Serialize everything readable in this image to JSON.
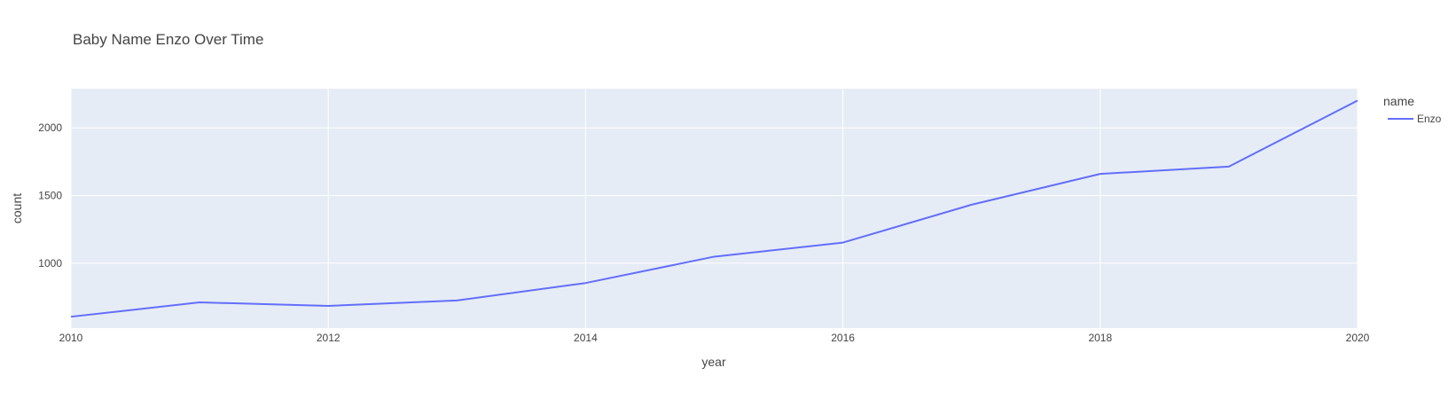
{
  "chart_data": {
    "type": "line",
    "title": "Baby Name Enzo Over Time",
    "xlabel": "year",
    "ylabel": "count",
    "xlim": [
      2010,
      2020
    ],
    "ylim": [
      520,
      2290
    ],
    "x_ticks": [
      2010,
      2012,
      2014,
      2016,
      2018,
      2020
    ],
    "y_ticks": [
      1000,
      1500,
      2000
    ],
    "grid": true,
    "legend": {
      "title": "name",
      "placement": "top-right"
    },
    "series": [
      {
        "name": "Enzo",
        "color": "#636efa",
        "x": [
          2010,
          2011,
          2012,
          2013,
          2014,
          2015,
          2016,
          2017,
          2018,
          2019,
          2020
        ],
        "values": [
          604,
          710,
          684,
          724,
          853,
          1048,
          1152,
          1432,
          1660,
          1714,
          2202
        ]
      }
    ]
  },
  "colors": {
    "plot_background": "#e5ecf6",
    "grid": "#ffffff",
    "text": "#444444"
  }
}
